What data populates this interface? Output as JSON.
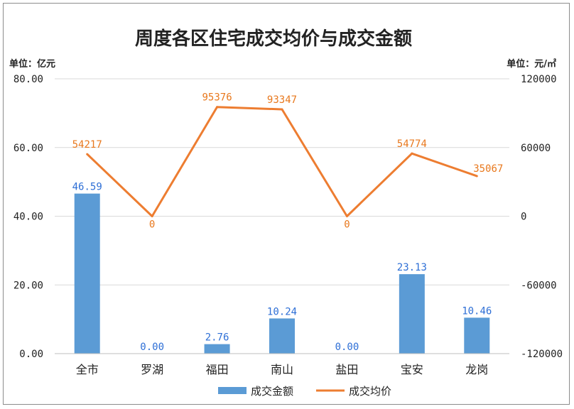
{
  "chart_data": {
    "type": "bar",
    "title": "周度各区住宅成交均价与成交金额",
    "left_unit": "单位：亿元",
    "right_unit": "单位：元/㎡",
    "categories": [
      "全市",
      "罗湖",
      "福田",
      "南山",
      "盐田",
      "宝安",
      "龙岗"
    ],
    "left_axis": {
      "ylim": [
        0,
        80
      ],
      "ticks": [
        "0.00",
        "20.00",
        "40.00",
        "60.00",
        "80.00"
      ]
    },
    "right_axis": {
      "ylim": [
        -120000,
        120000
      ],
      "ticks": [
        "-120000",
        "-60000",
        "0",
        "60000",
        "120000"
      ]
    },
    "series": [
      {
        "name": "成交金额",
        "type": "bar",
        "axis": "left",
        "color": "#5b9bd5",
        "values": [
          46.59,
          0.0,
          2.76,
          10.24,
          0.0,
          23.13,
          10.46
        ],
        "labels": [
          "46.59",
          "0.00",
          "2.76",
          "10.24",
          "0.00",
          "23.13",
          "10.46"
        ]
      },
      {
        "name": "成交均价",
        "type": "line",
        "axis": "right",
        "color": "#ed7d31",
        "values": [
          54217,
          0,
          95376,
          93347,
          0,
          54774,
          35067
        ],
        "labels": [
          "54217",
          "0",
          "95376",
          "93347",
          "0",
          "54774",
          "35067"
        ]
      }
    ],
    "grid": true,
    "legend": "bottom"
  }
}
